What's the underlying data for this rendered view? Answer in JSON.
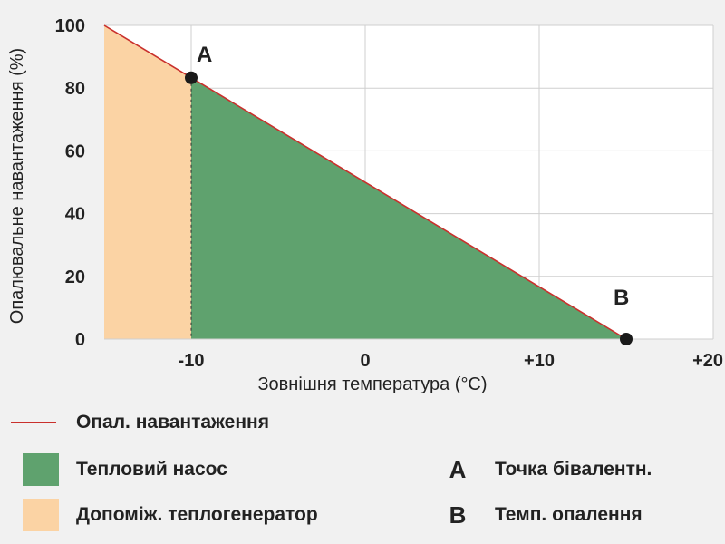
{
  "chart_data": {
    "type": "area",
    "xlabel": "Зовнішня температура (°C)",
    "ylabel": "Опалювальне навантаження (%)",
    "xlim": [
      -15,
      20
    ],
    "ylim": [
      0,
      100
    ],
    "x_ticks": [
      -10,
      0,
      10,
      20
    ],
    "x_tick_labels": [
      "-10",
      "0",
      "+10",
      "+20"
    ],
    "y_ticks": [
      0,
      20,
      40,
      60,
      80,
      100
    ],
    "y_tick_labels": [
      "0",
      "20",
      "40",
      "60",
      "80",
      "100"
    ],
    "grid": true,
    "series": [
      {
        "name": "Опал. навантаження",
        "x": [
          -15,
          15
        ],
        "y": [
          100,
          0
        ],
        "color": "#c9302c"
      }
    ],
    "regions": [
      {
        "name": "Тепловий насос",
        "x_from": -10,
        "x_to": 15,
        "color": "#5fa26e"
      },
      {
        "name": "Допоміж. теплогенератор",
        "x_from": -15,
        "x_to": -10,
        "color": "#fbd3a4"
      }
    ],
    "points": [
      {
        "label": "A",
        "x": -10,
        "y": 83.3,
        "meaning": "Точка бівалентн."
      },
      {
        "label": "B",
        "x": 15,
        "y": 0,
        "meaning": "Темп. опалення"
      }
    ]
  },
  "legend": {
    "line": {
      "label": "Опал. навантаження",
      "color": "#c9302c"
    },
    "heat_pump": {
      "label": "Тепловий насос",
      "color": "#5fa26e"
    },
    "aux": {
      "label": "Допоміж. теплогенератор",
      "color": "#fbd3a4"
    },
    "point_a": {
      "letter": "A",
      "label": "Точка бівалентн."
    },
    "point_b": {
      "letter": "B",
      "label": "Темп. опалення"
    }
  }
}
